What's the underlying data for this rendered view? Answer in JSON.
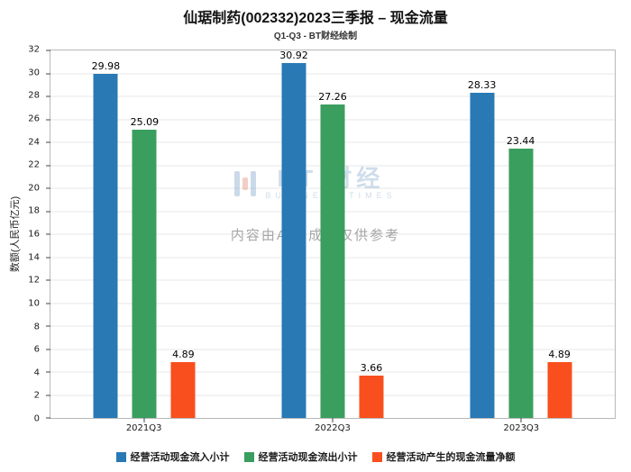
{
  "title": "仙琚制药(002332)2023三季报 – 现金流量",
  "subtitle": "Q1-Q3 - BT财经绘制",
  "watermark": {
    "logo_main": "BT 财经",
    "logo_sub": "BUSINESS TIMES",
    "disclaimer": "内容由AI生成，仅供参考"
  },
  "chart_data": {
    "type": "bar",
    "title": "仙琚制药(002332)2023三季报 – 现金流量",
    "subtitle": "Q1-Q3 - BT财经绘制",
    "categories": [
      "2021Q3",
      "2022Q3",
      "2023Q3"
    ],
    "series": [
      {
        "name": "经营活动现金流入小计",
        "color": "#2979b5",
        "values": [
          29.98,
          30.92,
          28.33
        ]
      },
      {
        "name": "经营活动现金流出小计",
        "color": "#3a9e5f",
        "values": [
          25.09,
          27.26,
          23.44
        ]
      },
      {
        "name": "经营活动产生的现金流量净额",
        "color": "#f94f1e",
        "values": [
          4.89,
          3.66,
          4.89
        ]
      }
    ],
    "xlabel": "",
    "ylabel": "数额(人民币亿元)",
    "ylim": [
      0,
      32
    ],
    "ytick_step": 2,
    "grid": true,
    "legend_position": "bottom"
  }
}
